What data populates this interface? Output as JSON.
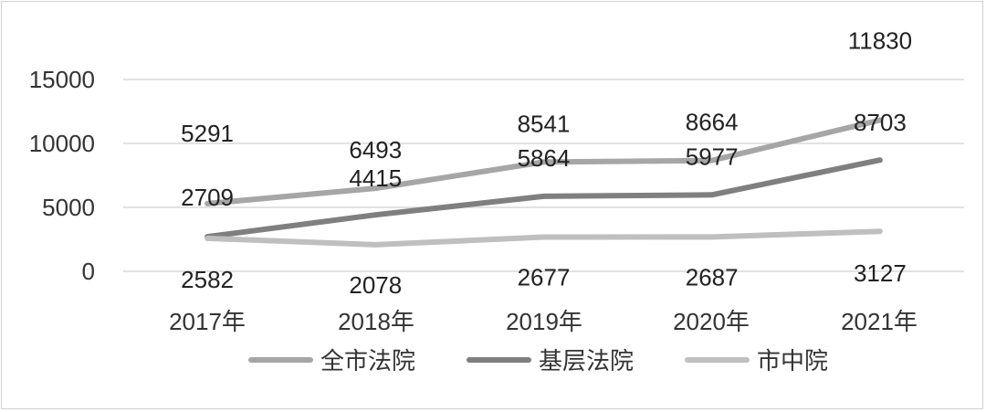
{
  "chart_data": {
    "type": "line",
    "categories": [
      "2017年",
      "2018年",
      "2019年",
      "2020年",
      "2021年"
    ],
    "y_ticks": [
      "0",
      "5000",
      "10000",
      "15000"
    ],
    "ylim": [
      0,
      15000
    ],
    "grid": "horizontal",
    "legend_position": "bottom",
    "series": [
      {
        "name": "全市法院",
        "values": [
          5291,
          6493,
          8541,
          8664,
          11830
        ],
        "color": "#a6a6a6"
      },
      {
        "name": "基层法院",
        "values": [
          2709,
          4415,
          5864,
          5977,
          8703
        ],
        "color": "#7f7f7f"
      },
      {
        "name": "市中院",
        "values": [
          2582,
          2078,
          2677,
          2687,
          3127
        ],
        "color": "#bfbfbf"
      }
    ]
  }
}
